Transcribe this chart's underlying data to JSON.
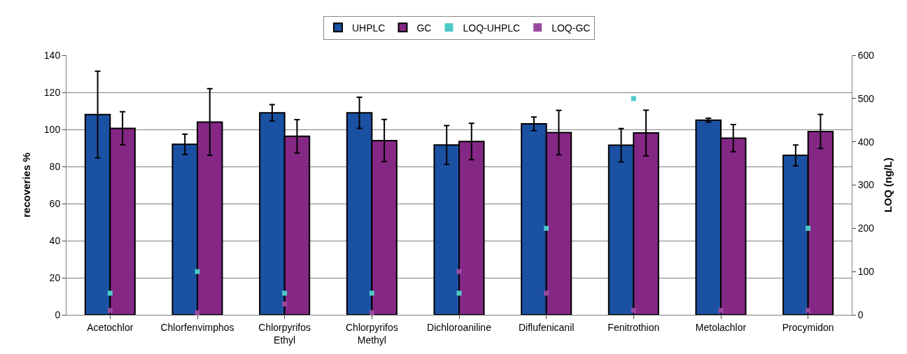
{
  "chart_data": {
    "type": "bar",
    "ylabel": "recoveries %",
    "y2label": "LOQ (ng/L)",
    "categories": [
      "Acetochlor",
      "Chlorfenvimphos",
      "Chlorpyrifos Ethyl",
      "Chlorpyrifos Methyl",
      "Dichloroaniline",
      "Diflufenicanil",
      "Fenitrothion",
      "Metolachlor",
      "Procymidon"
    ],
    "series": [
      {
        "name": "UHPLC",
        "color": "#1b51a3",
        "values": [
          108,
          92,
          109,
          109,
          91.6,
          103,
          91.5,
          105,
          86
        ],
        "errors": [
          23.4,
          5.5,
          4.4,
          8.4,
          10.5,
          3.7,
          9,
          1,
          5.6
        ]
      },
      {
        "name": "GC",
        "color": "#842785",
        "values": [
          100.6,
          104,
          96.3,
          94,
          93.5,
          98.3,
          98.1,
          95.3,
          98.9
        ],
        "errors": [
          8.9,
          18,
          9,
          11.4,
          9.8,
          12,
          12.3,
          7.3,
          9.2
        ]
      },
      {
        "name": "LOQ-UHPLC",
        "type": "scatter",
        "axis": "y2",
        "color": "#4ec8c8",
        "marker": "square",
        "values": [
          50,
          100,
          50,
          50,
          50,
          200,
          500,
          null,
          200
        ]
      },
      {
        "name": "LOQ-GC",
        "type": "scatter",
        "axis": "y2",
        "color": "#9b4aa0",
        "marker": "square",
        "values": [
          10,
          5,
          25,
          5,
          100,
          50,
          10,
          10,
          10
        ]
      }
    ],
    "ylim": [
      0,
      140
    ],
    "yticks": [
      0,
      20,
      40,
      60,
      80,
      100,
      120,
      140
    ],
    "y2lim": [
      0,
      600
    ],
    "y2ticks": [
      0,
      100,
      200,
      300,
      400,
      500,
      600
    ],
    "grid": "y",
    "legend": "top"
  }
}
